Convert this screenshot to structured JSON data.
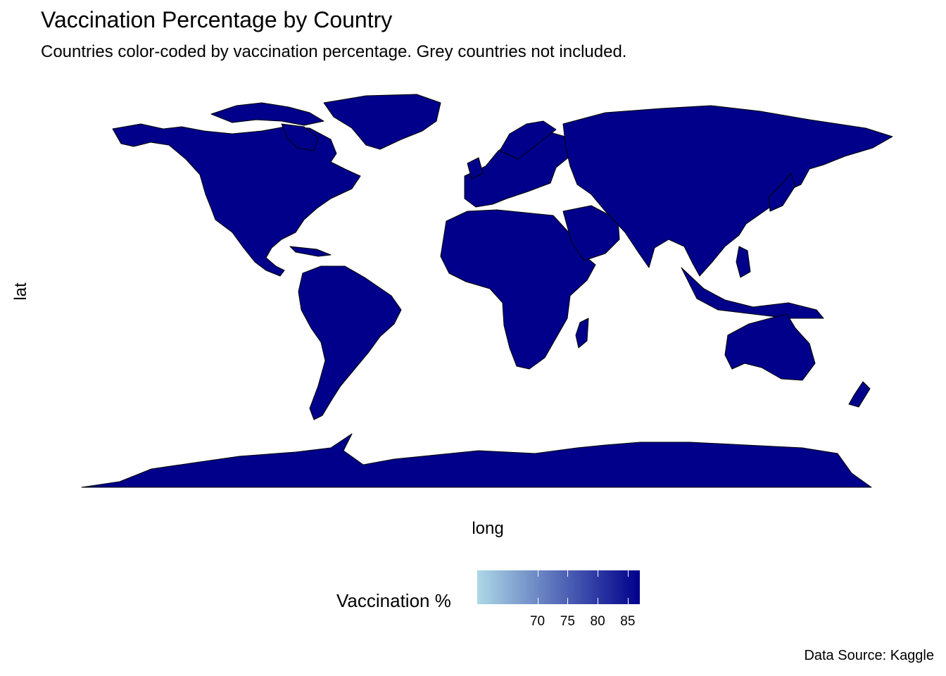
{
  "chart_data": {
    "type": "map",
    "title": "Vaccination Percentage by Country",
    "subtitle": "Countries color-coded by vaccination percentage. Grey countries not included.",
    "xlabel": "long",
    "ylabel": "lat",
    "fill_color": "#00008b",
    "border_color": "#000000",
    "legend": {
      "title": "Vaccination %",
      "position": "bottom",
      "scale_low_color": "#add8e6",
      "scale_high_color": "#00008b",
      "range": [
        60,
        87
      ],
      "ticks": [
        {
          "value": 70,
          "label": "70"
        },
        {
          "value": 75,
          "label": "75"
        },
        {
          "value": 80,
          "label": "80"
        },
        {
          "value": 85,
          "label": "85"
        }
      ]
    },
    "caption": "Data Source: Kaggle"
  }
}
